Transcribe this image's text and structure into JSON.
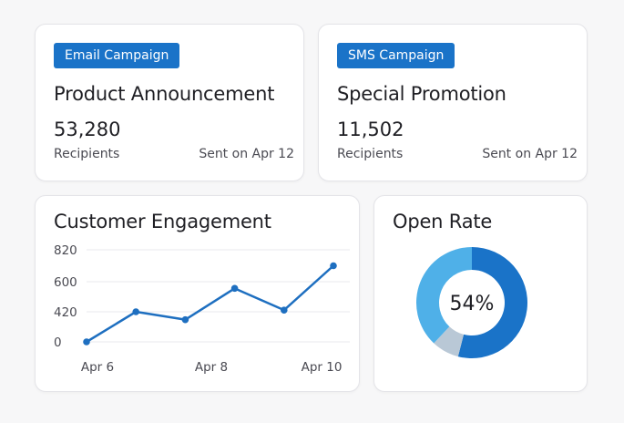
{
  "campaigns": [
    {
      "badge": "Email Campaign",
      "title": "Product Announcement",
      "count": "53,280",
      "recipients_label": "Recipients",
      "sent": "Sent on Apr 12"
    },
    {
      "badge": "SMS Campaign",
      "title": "Special Promotion",
      "count": "11,502",
      "recipients_label": "Recipients",
      "sent": "Sent on Apr 12"
    }
  ],
  "engagement": {
    "title": "Customer Engagement"
  },
  "open_rate": {
    "title": "Open Rate",
    "label": "54%"
  },
  "colors": {
    "badge": "#1a73c8",
    "line": "#1e6fc0",
    "donut_dark": "#1a73c8",
    "donut_light": "#4fb0e8",
    "donut_gray": "#b9c8d6"
  },
  "chart_data": [
    {
      "type": "line",
      "title": "Customer Engagement",
      "x_tick_labels": [
        "Apr 6",
        "Apr 8",
        "Apr 10"
      ],
      "y_ticks": [
        0,
        420,
        600,
        820
      ],
      "ylim": [
        0,
        820
      ],
      "grid": true,
      "series": [
        {
          "values": [
            0,
            420,
            310,
            560,
            430,
            710
          ]
        }
      ]
    },
    {
      "type": "pie",
      "title": "Open Rate",
      "center_label": "54%",
      "slices": [
        {
          "value": 54
        },
        {
          "value": 8
        },
        {
          "value": 38
        }
      ]
    }
  ]
}
